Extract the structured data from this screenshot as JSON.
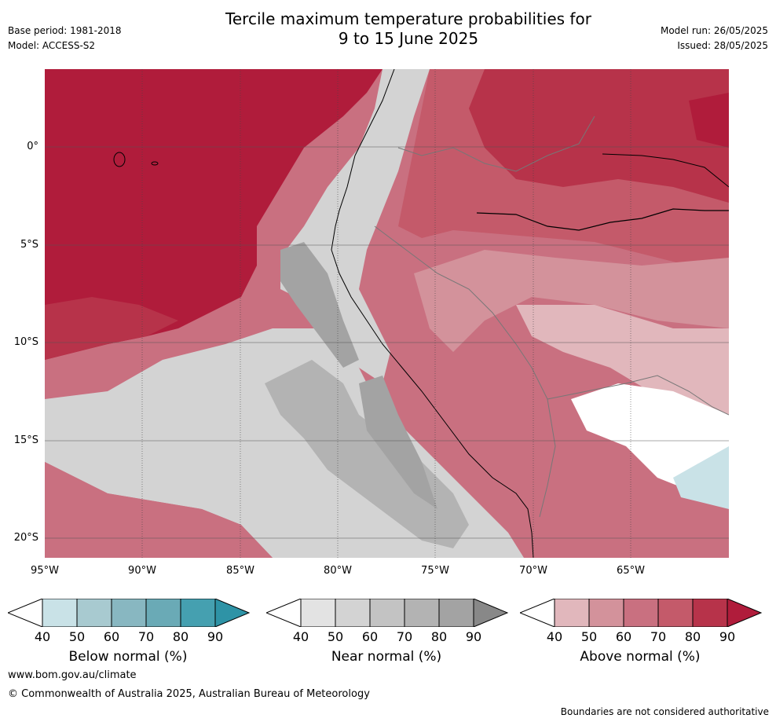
{
  "title": {
    "line1": "Tercile maximum temperature probabilities for",
    "line2": "9 to 15 June 2025"
  },
  "meta": {
    "base_period": "Base period: 1981-2018",
    "model": "Model: ACCESS-S2",
    "model_run": "Model run: 26/05/2025",
    "issued": "Issued: 28/05/2025"
  },
  "axes": {
    "lon_ticks": [
      "95°W",
      "90°W",
      "85°W",
      "80°W",
      "75°W",
      "70°W",
      "65°W"
    ],
    "lat_ticks": [
      "0°",
      "5°S",
      "10°S",
      "15°S",
      "20°S"
    ]
  },
  "colorbars": [
    {
      "name": "Below normal (%)",
      "ticks": [
        "40",
        "50",
        "60",
        "70",
        "80",
        "90"
      ],
      "colors": [
        "#ffffff",
        "#c9e2e7",
        "#a8cad0",
        "#88b7c1",
        "#6aaab6",
        "#45a0b0",
        "#2e93a6"
      ]
    },
    {
      "name": "Near normal (%)",
      "ticks": [
        "40",
        "50",
        "60",
        "70",
        "80",
        "90"
      ],
      "colors": [
        "#ffffff",
        "#e3e3e3",
        "#d3d3d3",
        "#c3c3c3",
        "#b3b3b3",
        "#a3a3a3",
        "#888888"
      ]
    },
    {
      "name": "Above normal (%)",
      "ticks": [
        "40",
        "50",
        "60",
        "70",
        "80",
        "90"
      ],
      "colors": [
        "#ffffff",
        "#e1b7bc",
        "#d3929b",
        "#c97080",
        "#c45a6a",
        "#b7334a",
        "#b01c3b"
      ]
    }
  ],
  "footer": {
    "url": "www.bom.gov.au/climate",
    "copyright": "© Commonwealth of Australia 2025, Australian Bureau of Meteorology",
    "disclaimer": "Boundaries are not considered authoritative"
  }
}
